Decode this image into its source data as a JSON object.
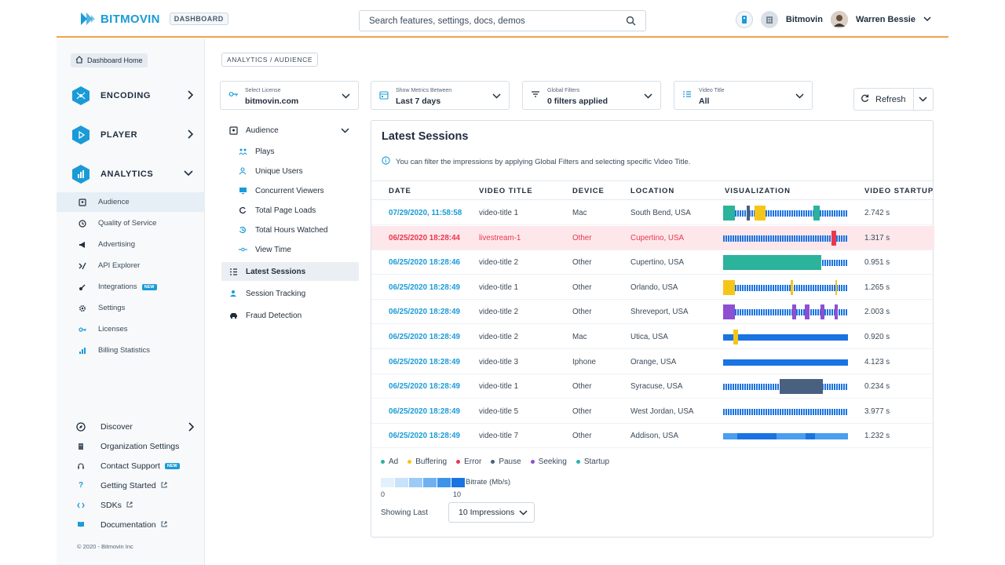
{
  "header": {
    "brand": "BITMOVIN",
    "badge": "DASHBOARD",
    "search_placeholder": "Search features, settings, docs, demos",
    "org_name": "Bitmovin",
    "user_name": "Warren Bessie",
    "accent": "#f2a14a",
    "brand_color": "#1a9bd8"
  },
  "sidebar": {
    "home": "Dashboard Home",
    "products": [
      {
        "label": "ENCODING",
        "icon": "encoding-icon"
      },
      {
        "label": "PLAYER",
        "icon": "player-icon"
      },
      {
        "label": "ANALYTICS",
        "icon": "analytics-icon"
      }
    ],
    "analytics_items": [
      {
        "label": "Audience",
        "icon": "audience-icon"
      },
      {
        "label": "Quality of Service",
        "icon": "quality-icon"
      },
      {
        "label": "Advertising",
        "icon": "megaphone-icon"
      },
      {
        "label": "API Explorer",
        "icon": "api-icon"
      },
      {
        "label": "Integrations",
        "icon": "integrations-icon",
        "badge": "NEW"
      },
      {
        "label": "Settings",
        "icon": "gear-icon"
      },
      {
        "label": "Licenses",
        "icon": "key-icon"
      },
      {
        "label": "Billing Statistics",
        "icon": "bar-chart-icon"
      }
    ],
    "footer_items": [
      {
        "label": "Discover",
        "icon": "compass-icon"
      },
      {
        "label": "Organization Settings",
        "icon": "building-icon"
      },
      {
        "label": "Contact Support",
        "icon": "headset-icon",
        "badge": "NEW"
      },
      {
        "label": "Getting Started",
        "icon": "question-icon"
      },
      {
        "label": "SDKs",
        "icon": "code-icon"
      },
      {
        "label": "Documentation",
        "icon": "book-icon"
      }
    ],
    "copyright": "© 2020 - Bitmovin Inc"
  },
  "breadcrumb": "ANALYTICS / AUDIENCE",
  "filters": [
    {
      "caption": "Select License",
      "value": "bitmovin.com",
      "icon": "key-icon"
    },
    {
      "caption": "Show Metrics Between",
      "value": "Last 7 days",
      "icon": "calendar-icon"
    },
    {
      "caption": "Global Filters",
      "value": "0 filters applied",
      "icon": "filter-icon"
    },
    {
      "caption": "Video Title",
      "value": "All",
      "icon": "list-icon"
    }
  ],
  "refresh_label": "Refresh",
  "secondary_nav": {
    "audience": "Audience",
    "children": [
      "Plays",
      "Unique Users",
      "Concurrent Viewers",
      "Total Page Loads",
      "Total Hours Watched",
      "View Time"
    ],
    "items": [
      "Latest Sessions",
      "Session Tracking",
      "Fraud Detection"
    ]
  },
  "panel": {
    "title": "Latest Sessions",
    "info": "You can filter the impressions by applying Global Filters and selecting specific Video Title.",
    "columns": [
      "DATE",
      "VIDEO TITLE",
      "DEVICE",
      "LOCATION",
      "VISUALIZATION",
      "VIDEO STARTUP"
    ],
    "rows": [
      {
        "date": "07/29/2020, 11:58:58",
        "title": "video-title 1",
        "device": "Mac",
        "location": "South Bend, USA",
        "startup": "2.742 s",
        "error": false
      },
      {
        "date": "06/25/2020 18:28:44",
        "title": "livestream-1",
        "device": "Other",
        "location": "Cupertino, USA",
        "startup": "1.317 s",
        "error": true
      },
      {
        "date": "06/25/2020 18:28:46",
        "title": "video-title 2",
        "device": "Other",
        "location": "Cupertino, USA",
        "startup": "0.951 s",
        "error": false
      },
      {
        "date": "06/25/2020 18:28:49",
        "title": "video-title 1",
        "device": "Other",
        "location": "Orlando, USA",
        "startup": "1.265 s",
        "error": false
      },
      {
        "date": "06/25/2020 18:28:49",
        "title": "video-title 2",
        "device": "Other",
        "location": "Shreveport, USA",
        "startup": "2.003 s",
        "error": false
      },
      {
        "date": "06/25/2020 18:28:49",
        "title": "video-title 2",
        "device": "Mac",
        "location": "Utica, USA",
        "startup": "0.920 s",
        "error": false
      },
      {
        "date": "06/25/2020 18:28:49",
        "title": "video-title 3",
        "device": "Iphone",
        "location": "Orange, USA",
        "startup": "4.123 s",
        "error": false
      },
      {
        "date": "06/25/2020 18:28:49",
        "title": "video-title 1",
        "device": "Other",
        "location": "Syracuse, USA",
        "startup": "0.234 s",
        "error": false
      },
      {
        "date": "06/25/2020 18:28:49",
        "title": "video-title 5",
        "device": "Other",
        "location": "West Jordan, USA",
        "startup": "3.977 s",
        "error": false
      },
      {
        "date": "06/25/2020 18:28:49",
        "title": "video-title 7",
        "device": "Other",
        "location": "Addison, USA",
        "startup": "1.232 s",
        "error": false
      }
    ],
    "legend": [
      {
        "label": "Ad",
        "color": "#2bb39b"
      },
      {
        "label": "Buffering",
        "color": "#f5c518"
      },
      {
        "label": "Error",
        "color": "#e8384f"
      },
      {
        "label": "Pause",
        "color": "#4a6080"
      },
      {
        "label": "Seeking",
        "color": "#8e4fd1"
      },
      {
        "label": "Startup",
        "color": "#2bb3a8"
      }
    ],
    "bitrate_label": "Bitrate (Mb/s)",
    "bitrate_min": "0",
    "bitrate_max": "10",
    "showing_label": "Showing Last",
    "impressions": "10 Impressions"
  }
}
